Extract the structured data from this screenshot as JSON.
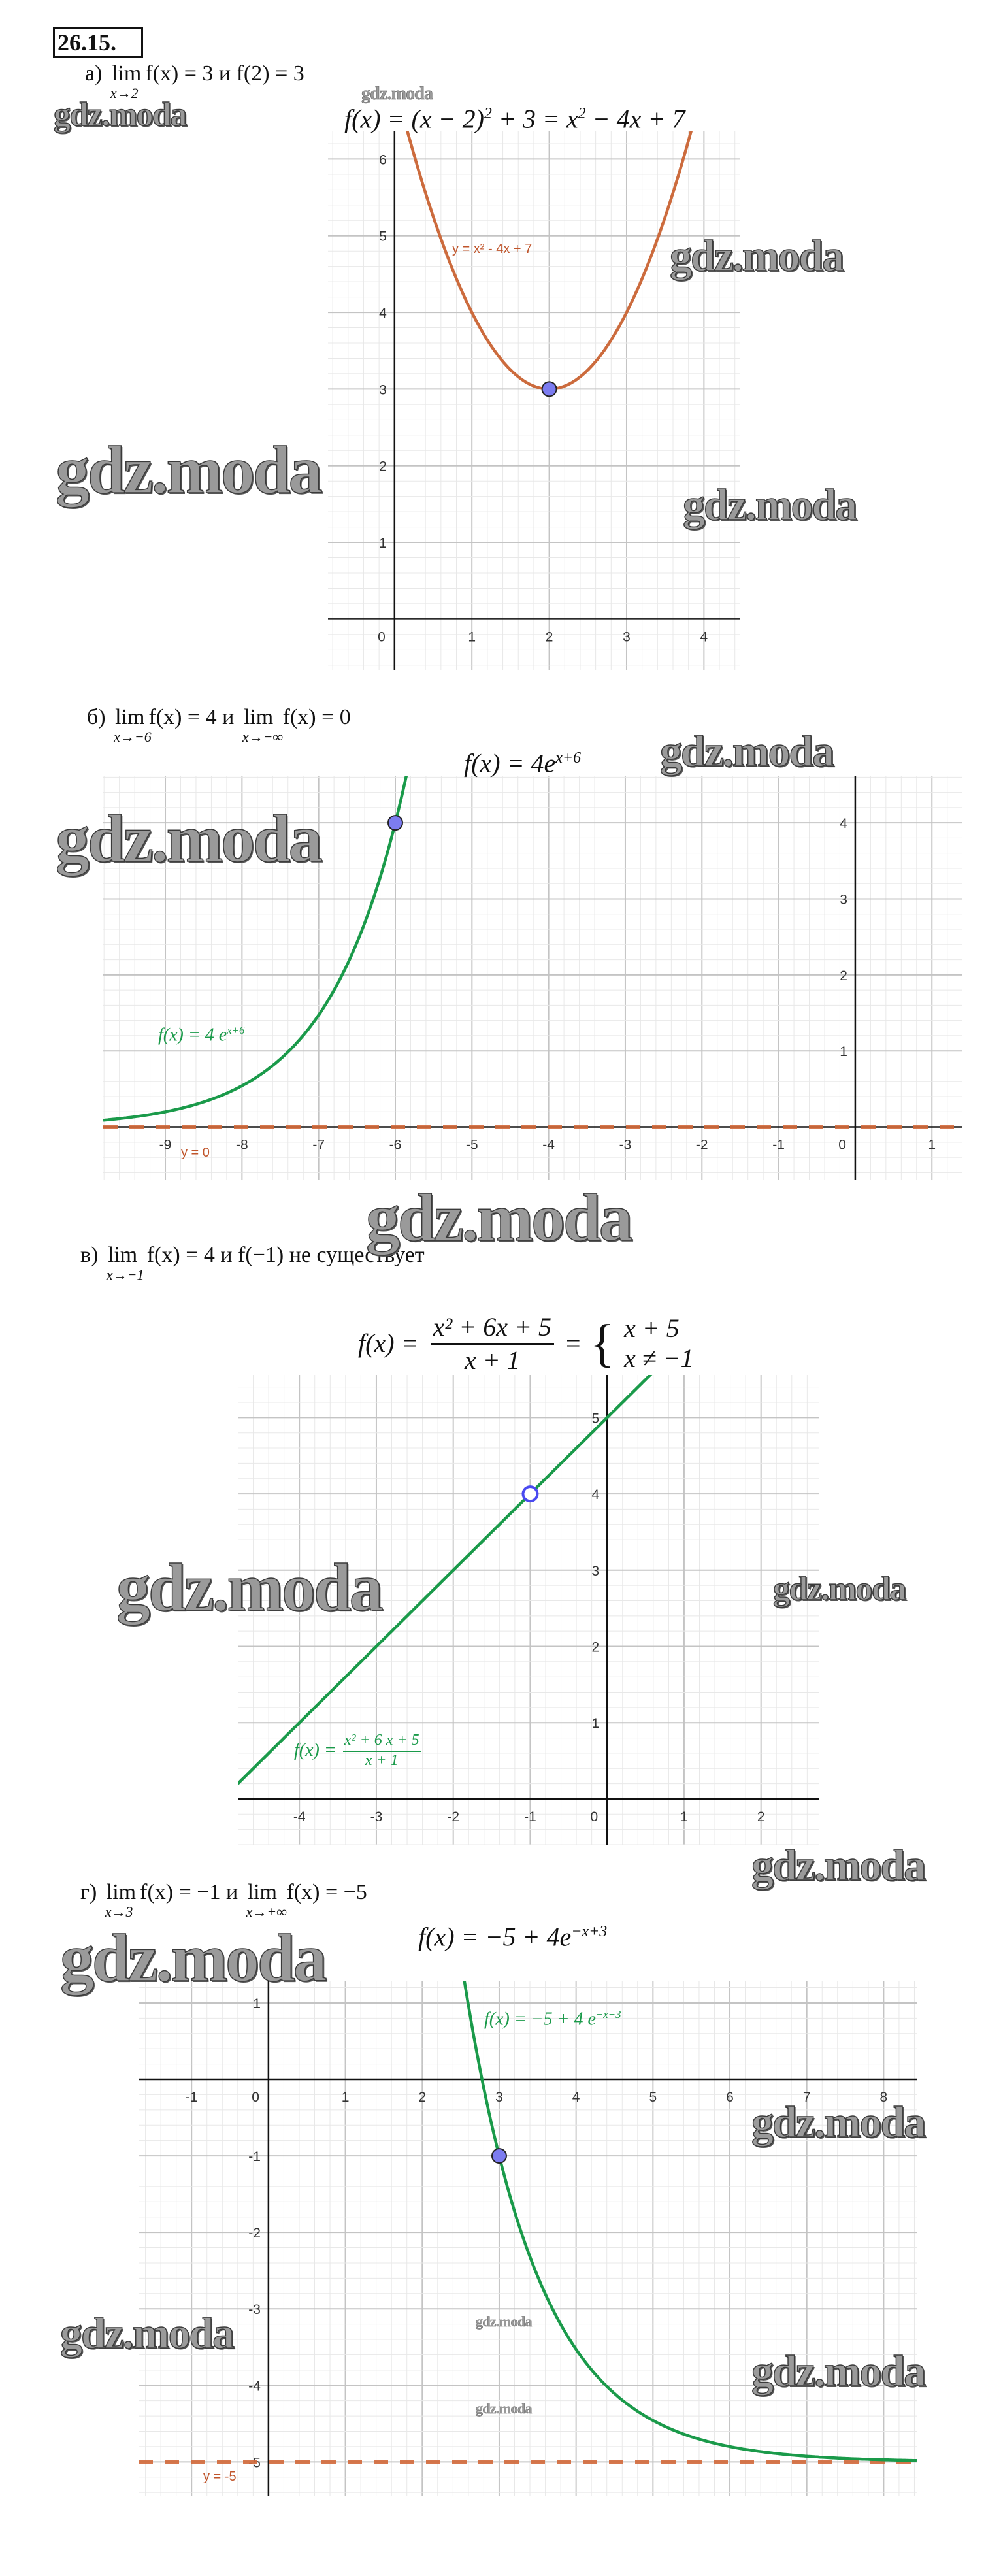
{
  "problem_number": "26.15.",
  "watermark": "gdz.moda",
  "parts": [
    {
      "condition": [
        {
          "t": "а) "
        },
        {
          "lim": "lim",
          "sub": "x→2"
        },
        {
          "t": "f(x) = 3 и f(2) = 3"
        }
      ],
      "formula": [
        {
          "t": "f(x) = (x − 2)",
          "sup": "2"
        },
        {
          "t": " + 3 = x",
          "sup": "2"
        },
        {
          "t": " − 4x + 7"
        }
      ]
    },
    {
      "condition": [
        {
          "t": "б) "
        },
        {
          "lim": "lim",
          "sub": "x→−6"
        },
        {
          "t": "f(x) = 4 и "
        },
        {
          "lim": "lim",
          "sub": "x→−∞"
        },
        {
          "t": " f(x) = 0"
        }
      ],
      "formula": [
        {
          "t": "f(x) = 4e",
          "sup": "x+6"
        }
      ]
    },
    {
      "condition": [
        {
          "t": "в) "
        },
        {
          "lim": "lim",
          "sub": "x→−1"
        },
        {
          "t": " f(x) = 4 и f(−1) не существует"
        }
      ],
      "formula": {
        "lhs": "f(x) =",
        "numerator": "x² + 6x + 5",
        "denominator": "x + 1",
        "eq": "=",
        "case1": "x + 5",
        "case2": "x ≠ −1"
      }
    },
    {
      "condition": [
        {
          "t": "г) "
        },
        {
          "lim": "lim",
          "sub": "x→3"
        },
        {
          "t": "f(x) = −1 и "
        },
        {
          "lim": "lim",
          "sub": "x→+∞"
        },
        {
          "t": " f(x) = −5"
        }
      ],
      "formula": [
        {
          "t": "f(x) = −5 + 4e",
          "sup": "−x+3"
        }
      ]
    }
  ],
  "chart_data": [
    {
      "type": "line",
      "function": "x^2 - 4x + 7",
      "curve_label": "y = x² - 4x + 7",
      "curve_color": "#cc6b3d",
      "xlim": [
        -0.86,
        4.47
      ],
      "ylim": [
        -0.67,
        6.37
      ],
      "xticks": [
        "0",
        "1",
        "2",
        "3",
        "4"
      ],
      "yticks": [
        "1",
        "2",
        "3",
        "4",
        "5",
        "6"
      ],
      "grid": true,
      "point": {
        "x": 2,
        "y": 3,
        "filled": true,
        "color": "#7c7cf0"
      }
    },
    {
      "type": "line",
      "function": "4e^(x+6)",
      "curve_label": {
        "main": "f(x)  =  4 e",
        "sup": "x+6"
      },
      "curve_color": "#1a9a4a",
      "xlim": [
        -9.81,
        1.39
      ],
      "ylim": [
        -0.7,
        4.62
      ],
      "xticks": [
        "-9",
        "-8",
        "-7",
        "-6",
        "-5",
        "-4",
        "-3",
        "-2",
        "-1",
        "0",
        "1"
      ],
      "yticks": [
        "1",
        "2",
        "3",
        "4"
      ],
      "grid": true,
      "point": {
        "x": -6,
        "y": 4,
        "filled": true,
        "color": "#7c7cf0"
      },
      "asymptote": {
        "y": 0,
        "label": "y = 0",
        "color": "#d2693a",
        "style": "dashed"
      }
    },
    {
      "type": "line",
      "function": "(x^2 + 6x + 5)/(x + 1)",
      "curve_label": {
        "lhs": "f(x)  =",
        "numerator": "x² + 6 x + 5",
        "denominator": "x + 1"
      },
      "curve_color": "#1a9a4a",
      "xlim": [
        -4.8,
        2.75
      ],
      "ylim": [
        -0.6,
        5.56
      ],
      "xticks": [
        "-4",
        "-3",
        "-2",
        "-1",
        "0",
        "1",
        "2"
      ],
      "yticks": [
        "1",
        "2",
        "3",
        "4",
        "5"
      ],
      "grid": true,
      "point": {
        "x": -1,
        "y": 4,
        "filled": false,
        "color": "#4a4af0"
      }
    },
    {
      "type": "line",
      "function": "-5 + 4e^(-x+3)",
      "curve_label": {
        "main": "f(x)  =  −5 + 4 e",
        "sup": "−x+3"
      },
      "curve_color": "#1a9a4a",
      "xlim": [
        -1.69,
        8.43
      ],
      "ylim": [
        -5.45,
        1.29
      ],
      "xticks": [
        "-1",
        "0",
        "1",
        "2",
        "3",
        "4",
        "5",
        "6",
        "7",
        "8"
      ],
      "yticks": [
        "1",
        "-1",
        "-2",
        "-3",
        "-4",
        "-5"
      ],
      "grid": true,
      "point": {
        "x": 3,
        "y": -1,
        "filled": true,
        "color": "#7c7cf0"
      },
      "asymptote": {
        "y": -5,
        "label": "y = -5",
        "color": "#d2693a",
        "style": "dashed"
      }
    }
  ]
}
